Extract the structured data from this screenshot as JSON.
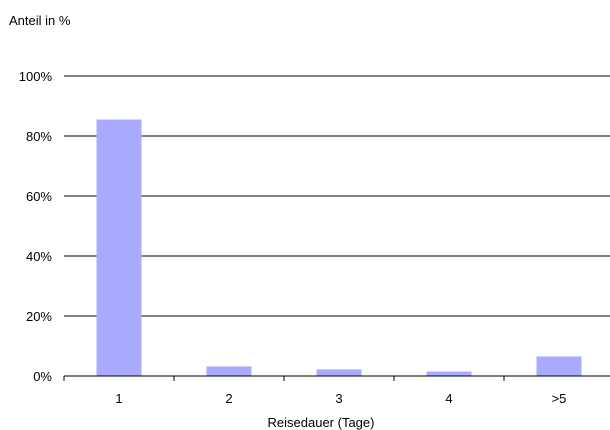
{
  "chart_data": {
    "type": "bar",
    "title": "",
    "ylabel": "Anteil in %",
    "xlabel": "Reisedauer (Tage)",
    "categories": [
      "1",
      "2",
      "3",
      "4",
      ">5"
    ],
    "values": [
      85.5,
      3.2,
      2.2,
      1.5,
      6.5
    ],
    "ylim": [
      0,
      100
    ],
    "yticks": [
      0,
      20,
      40,
      60,
      80,
      100
    ],
    "ytick_labels": [
      "0%",
      "20%",
      "40%",
      "60%",
      "80%",
      "100%"
    ],
    "grid": true,
    "legend": "none",
    "colors": {
      "bar": "#aaaaff",
      "grid": "#000000",
      "axis": "#000000"
    }
  }
}
